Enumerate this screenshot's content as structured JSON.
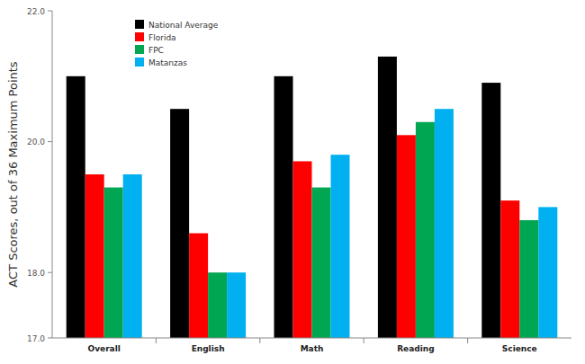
{
  "chart_data": {
    "type": "bar",
    "ylabel": "ACT Scores, out of 36 Maximum Points",
    "categories": [
      "Overall",
      "English",
      "Math",
      "Reading",
      "Science"
    ],
    "series": [
      {
        "name": "National Average",
        "color": "#000000",
        "values": [
          21.0,
          20.5,
          21.0,
          21.3,
          20.9
        ]
      },
      {
        "name": "Florida",
        "color": "#ff0000",
        "values": [
          19.5,
          18.6,
          19.7,
          20.1,
          19.1
        ]
      },
      {
        "name": "FPC",
        "color": "#00a651",
        "values": [
          19.3,
          18.0,
          19.3,
          20.3,
          18.8
        ]
      },
      {
        "name": "Matanzas",
        "color": "#00b0f0",
        "values": [
          19.5,
          18.0,
          19.8,
          20.5,
          19.0
        ]
      }
    ],
    "ylim": [
      17,
      22
    ],
    "yticks": [
      {
        "value": 17,
        "label": "17.0"
      },
      {
        "value": 18,
        "label": "18.0"
      },
      {
        "value": 20,
        "label": "20.0"
      },
      {
        "value": 22,
        "label": "22.0"
      }
    ],
    "grid": false,
    "legend": "top-left"
  }
}
